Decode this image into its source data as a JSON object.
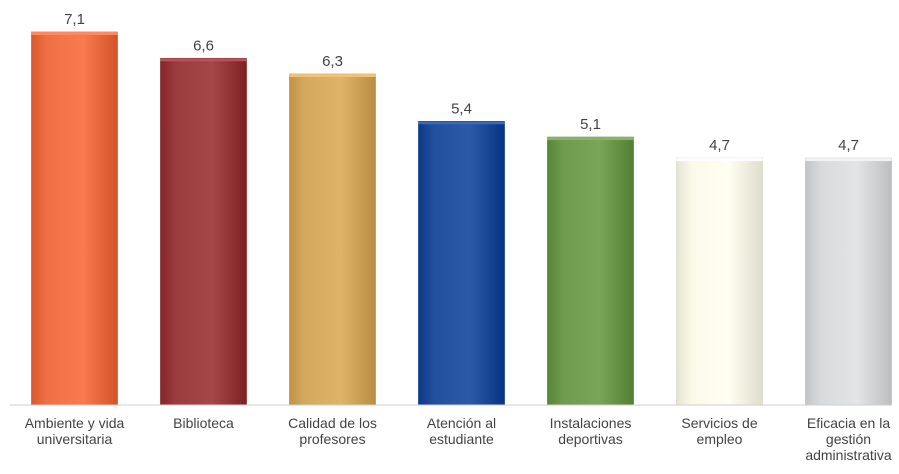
{
  "chart_data": {
    "type": "bar",
    "categories": [
      [
        "Ambiente y vida",
        "universitaria"
      ],
      [
        "Biblioteca"
      ],
      [
        "Calidad de los",
        "profesores"
      ],
      [
        "Atención al",
        "estudiante"
      ],
      [
        "Instalaciones",
        "deportivas"
      ],
      [
        "Servicios de",
        "empleo"
      ],
      [
        "Eficacia en la",
        "gestión",
        "administrativa"
      ]
    ],
    "values": [
      7.1,
      6.6,
      6.3,
      5.4,
      5.1,
      4.7,
      4.7
    ],
    "value_labels": [
      "7,1",
      "6,6",
      "6,3",
      "5,4",
      "5,1",
      "4,7",
      "4,7"
    ],
    "colors": [
      "#f07046",
      "#9b3c3f",
      "#d6aa5e",
      "#224f9e",
      "#6f9b4e",
      "#fbf9e8",
      "#d8dadc"
    ],
    "ylim": [
      0,
      7.1
    ],
    "grid": false,
    "legend": "none",
    "title": "",
    "xlabel": "",
    "ylabel": ""
  }
}
